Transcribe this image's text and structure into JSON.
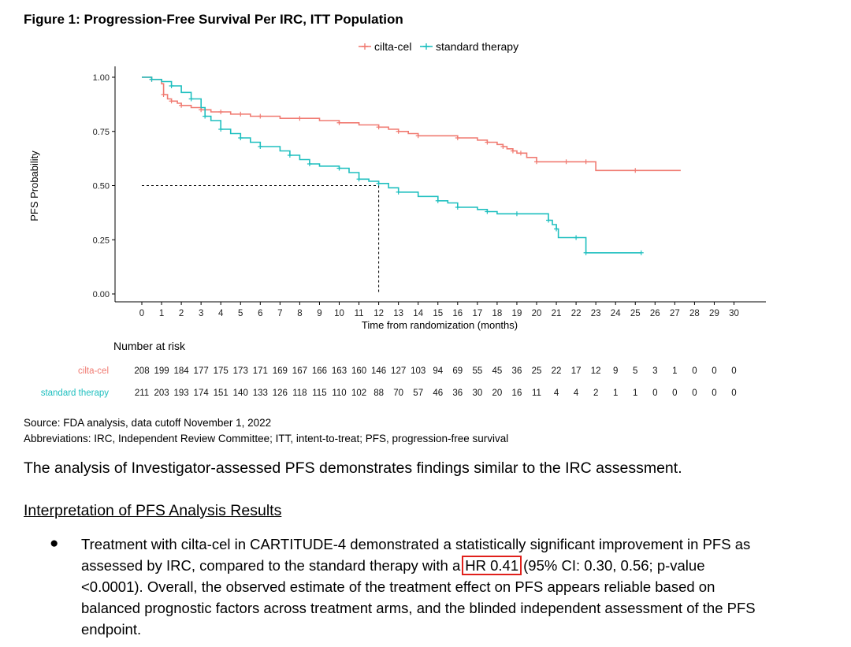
{
  "figure_title": "Figure 1: Progression-Free Survival Per IRC, ITT Population",
  "chart_data": {
    "type": "line",
    "title": "Figure 1: Progression-Free Survival Per IRC, ITT Population",
    "xlabel": "Time from randomization (months)",
    "ylabel": "PFS Probability",
    "xlim": [
      0,
      30
    ],
    "ylim": [
      0,
      1
    ],
    "x_ticks": [
      "0",
      "1",
      "2",
      "3",
      "4",
      "5",
      "6",
      "7",
      "8",
      "9",
      "10",
      "11",
      "12",
      "13",
      "14",
      "15",
      "16",
      "17",
      "18",
      "19",
      "20",
      "21",
      "22",
      "23",
      "24",
      "25",
      "26",
      "27",
      "28",
      "29",
      "30"
    ],
    "y_ticks": [
      "0.00",
      "0.25",
      "0.50",
      "0.75",
      "1.00"
    ],
    "legend": [
      "cilta-cel",
      "standard therapy"
    ],
    "legend_position": "top",
    "series": [
      {
        "name": "cilta-cel",
        "color": "#f07b72",
        "x": [
          0,
          0.5,
          1,
          1.1,
          1.3,
          1.5,
          1.8,
          2,
          2.5,
          3,
          3.5,
          4,
          4.5,
          5,
          5.5,
          6,
          7,
          8,
          9,
          10,
          11,
          12,
          12.5,
          13,
          13.5,
          14,
          15,
          16,
          17,
          17.5,
          18,
          18.3,
          18.5,
          18.8,
          19,
          19.2,
          19.5,
          20,
          21,
          21.5,
          22,
          22.5,
          23,
          25,
          27.3
        ],
        "values": [
          1,
          0.99,
          0.97,
          0.92,
          0.9,
          0.89,
          0.88,
          0.87,
          0.86,
          0.85,
          0.84,
          0.84,
          0.83,
          0.83,
          0.82,
          0.82,
          0.81,
          0.81,
          0.8,
          0.79,
          0.78,
          0.77,
          0.76,
          0.75,
          0.74,
          0.73,
          0.73,
          0.72,
          0.71,
          0.7,
          0.69,
          0.68,
          0.67,
          0.66,
          0.65,
          0.65,
          0.63,
          0.61,
          0.61,
          0.61,
          0.61,
          0.61,
          0.57,
          0.57,
          0.57
        ]
      },
      {
        "name": "standard therapy",
        "color": "#1ebfbf",
        "x": [
          0,
          0.5,
          1,
          1.5,
          2,
          2.5,
          3,
          3.2,
          3.5,
          4,
          4.5,
          5,
          5.5,
          6,
          7,
          7.5,
          8,
          8.5,
          9,
          10,
          10.5,
          11,
          11.5,
          12,
          12.5,
          13,
          14,
          15,
          15.5,
          16,
          17,
          17.5,
          18,
          19,
          20,
          20.6,
          20.8,
          21,
          21.1,
          22,
          22.4,
          22.5,
          23,
          25.3
        ],
        "values": [
          1,
          0.99,
          0.98,
          0.96,
          0.93,
          0.9,
          0.86,
          0.82,
          0.8,
          0.76,
          0.74,
          0.72,
          0.7,
          0.68,
          0.66,
          0.64,
          0.62,
          0.6,
          0.59,
          0.58,
          0.56,
          0.53,
          0.52,
          0.51,
          0.49,
          0.47,
          0.45,
          0.43,
          0.42,
          0.4,
          0.39,
          0.38,
          0.37,
          0.37,
          0.37,
          0.34,
          0.32,
          0.3,
          0.26,
          0.26,
          0.26,
          0.19,
          0.19,
          0.19
        ]
      }
    ],
    "median_annotation": {
      "x": 12,
      "y": 0.5
    },
    "risk_table": {
      "title": "Number at risk",
      "rows": [
        {
          "label": "cilta-cel",
          "values": [
            "208",
            "199",
            "184",
            "177",
            "175",
            "173",
            "171",
            "169",
            "167",
            "166",
            "163",
            "160",
            "146",
            "127",
            "103",
            "94",
            "69",
            "55",
            "45",
            "36",
            "25",
            "22",
            "17",
            "12",
            "9",
            "5",
            "3",
            "1",
            "0",
            "0",
            "0"
          ]
        },
        {
          "label": "standard therapy",
          "values": [
            "211",
            "203",
            "193",
            "174",
            "151",
            "140",
            "133",
            "126",
            "118",
            "115",
            "110",
            "102",
            "88",
            "70",
            "57",
            "46",
            "36",
            "30",
            "20",
            "16",
            "11",
            "4",
            "4",
            "2",
            "1",
            "1",
            "0",
            "0",
            "0",
            "0",
            "0"
          ]
        }
      ]
    }
  },
  "source_text": "Source: FDA analysis, data cutoff November 1, 2022",
  "abbreviations_text": "Abbreviations: IRC, Independent Review Committee; ITT, intent-to-treat; PFS, progression-free survival",
  "analysis_text": "The analysis of Investigator-assessed PFS demonstrates findings similar to the IRC assessment.",
  "interpretation_heading": "Interpretation of PFS Analysis Results",
  "bullet": {
    "marker": "●",
    "before": "Treatment with cilta-cel in CARTITUDE-4 demonstrated a statistically significant improvement in PFS as assessed by IRC, compared to the standard therapy with a",
    "highlight": "HR 0.41",
    "after": "(95% CI: 0.30, 0.56; p-value <0.0001). Overall, the observed estimate of the treatment effect on PFS appears reliable based on balanced prognostic factors across treatment arms, and the blinded independent assessment of the PFS endpoint."
  }
}
